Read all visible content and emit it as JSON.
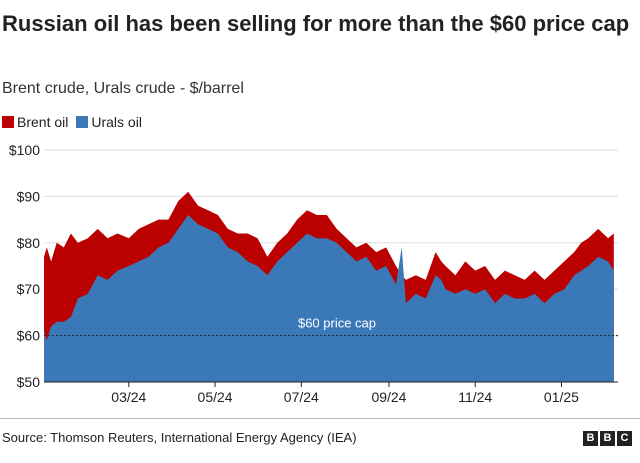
{
  "header": {
    "title": "Russian oil has been selling for more than the $60 price cap",
    "subtitle": "Brent crude, Urals crude - $/barrel"
  },
  "footer": {
    "source": "Source: Thomson Reuters, International Energy Agency (IEA)",
    "logo_letters": [
      "B",
      "B",
      "C"
    ]
  },
  "chart_data": {
    "type": "area",
    "title": "Russian oil has been selling for more than the $60 price cap",
    "subtitle": "Brent crude, Urals crude - $/barrel",
    "ylim": [
      50,
      100
    ],
    "yticks": [
      50,
      60,
      70,
      80,
      90,
      100
    ],
    "ytick_labels": [
      "$50",
      "$60",
      "$70",
      "$80",
      "$90",
      "$100"
    ],
    "xlim": [
      "2024-01-01",
      "2025-02-10"
    ],
    "xticks": [
      "2024-03-01",
      "2024-05-01",
      "2024-07-01",
      "2024-09-01",
      "2024-11-01",
      "2025-01-01"
    ],
    "xtick_labels": [
      "03/24",
      "05/24",
      "07/24",
      "09/24",
      "11/24",
      "01/25"
    ],
    "grid": true,
    "legend_position": "top-left",
    "colors": {
      "brent": "#bb0000",
      "urals": "#3a78b8",
      "cap_line": "#222222"
    },
    "legend": [
      {
        "label": "Brent oil",
        "color": "#bb0000"
      },
      {
        "label": "Urals oil",
        "color": "#3a78b8"
      }
    ],
    "annotation": {
      "label": "$60 price cap",
      "y": 60
    },
    "series": [
      {
        "name": "Brent oil",
        "x": [
          "2024-01-01",
          "2024-01-03",
          "2024-01-06",
          "2024-01-10",
          "2024-01-15",
          "2024-01-20",
          "2024-01-25",
          "2024-02-01",
          "2024-02-08",
          "2024-02-15",
          "2024-02-22",
          "2024-03-01",
          "2024-03-08",
          "2024-03-15",
          "2024-03-22",
          "2024-03-29",
          "2024-04-05",
          "2024-04-12",
          "2024-04-19",
          "2024-04-26",
          "2024-05-03",
          "2024-05-10",
          "2024-05-17",
          "2024-05-24",
          "2024-05-31",
          "2024-06-07",
          "2024-06-14",
          "2024-06-21",
          "2024-06-28",
          "2024-07-05",
          "2024-07-12",
          "2024-07-19",
          "2024-07-26",
          "2024-08-02",
          "2024-08-09",
          "2024-08-16",
          "2024-08-23",
          "2024-08-30",
          "2024-09-06",
          "2024-09-10",
          "2024-09-13",
          "2024-09-20",
          "2024-09-27",
          "2024-10-04",
          "2024-10-08",
          "2024-10-11",
          "2024-10-18",
          "2024-10-25",
          "2024-11-01",
          "2024-11-08",
          "2024-11-15",
          "2024-11-22",
          "2024-11-29",
          "2024-12-06",
          "2024-12-13",
          "2024-12-20",
          "2024-12-27",
          "2025-01-03",
          "2025-01-10",
          "2025-01-15",
          "2025-01-20",
          "2025-01-27",
          "2025-02-03",
          "2025-02-07"
        ],
        "values": [
          77,
          79,
          76,
          80,
          79,
          82,
          80,
          81,
          83,
          81,
          82,
          81,
          83,
          84,
          85,
          85,
          89,
          91,
          88,
          87,
          86,
          83,
          82,
          82,
          81,
          77,
          80,
          82,
          85,
          87,
          86,
          86,
          83,
          81,
          79,
          80,
          78,
          79,
          75,
          73,
          72,
          73,
          72,
          78,
          76,
          75,
          73,
          76,
          74,
          75,
          72,
          74,
          73,
          72,
          74,
          72,
          74,
          76,
          78,
          80,
          81,
          83,
          81,
          82
        ]
      },
      {
        "name": "Urals oil",
        "x": [
          "2024-01-01",
          "2024-01-03",
          "2024-01-06",
          "2024-01-10",
          "2024-01-15",
          "2024-01-20",
          "2024-01-25",
          "2024-02-01",
          "2024-02-08",
          "2024-02-15",
          "2024-02-22",
          "2024-03-01",
          "2024-03-08",
          "2024-03-15",
          "2024-03-22",
          "2024-03-29",
          "2024-04-05",
          "2024-04-12",
          "2024-04-19",
          "2024-04-26",
          "2024-05-03",
          "2024-05-10",
          "2024-05-17",
          "2024-05-24",
          "2024-05-31",
          "2024-06-07",
          "2024-06-14",
          "2024-06-21",
          "2024-06-28",
          "2024-07-05",
          "2024-07-12",
          "2024-07-19",
          "2024-07-26",
          "2024-08-02",
          "2024-08-09",
          "2024-08-16",
          "2024-08-23",
          "2024-08-30",
          "2024-09-06",
          "2024-09-10",
          "2024-09-13",
          "2024-09-20",
          "2024-09-27",
          "2024-10-04",
          "2024-10-08",
          "2024-10-11",
          "2024-10-18",
          "2024-10-25",
          "2024-11-01",
          "2024-11-08",
          "2024-11-15",
          "2024-11-22",
          "2024-11-29",
          "2024-12-06",
          "2024-12-13",
          "2024-12-20",
          "2024-12-27",
          "2025-01-03",
          "2025-01-10",
          "2025-01-15",
          "2025-01-20",
          "2025-01-27",
          "2025-02-03",
          "2025-02-07"
        ],
        "values": [
          61,
          59,
          62,
          63,
          63,
          64,
          68,
          69,
          73,
          72,
          74,
          75,
          76,
          77,
          79,
          80,
          83,
          86,
          84,
          83,
          82,
          79,
          78,
          76,
          75,
          73,
          76,
          78,
          80,
          82,
          81,
          81,
          80,
          78,
          76,
          77,
          74,
          75,
          71,
          79,
          67,
          69,
          68,
          73,
          72,
          70,
          69,
          70,
          69,
          70,
          67,
          69,
          68,
          68,
          69,
          67,
          69,
          70,
          73,
          74,
          75,
          77,
          76,
          74
        ]
      }
    ]
  }
}
